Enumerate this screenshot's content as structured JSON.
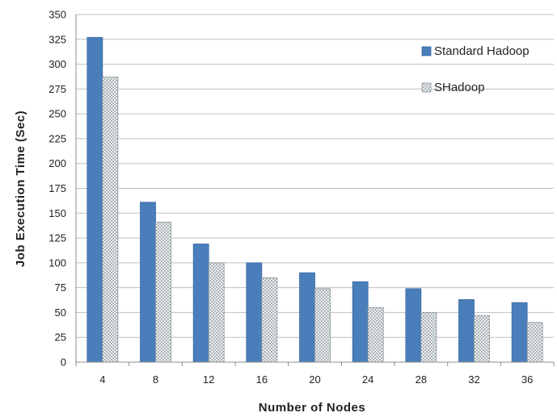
{
  "chart_data": {
    "type": "bar",
    "xlabel": "Number of Nodes",
    "ylabel": "Job Execution Time (Sec)",
    "categories": [
      "4",
      "8",
      "12",
      "16",
      "20",
      "24",
      "28",
      "32",
      "36"
    ],
    "ylim": [
      0,
      350
    ],
    "yticks": [
      0,
      25,
      50,
      75,
      100,
      125,
      150,
      175,
      200,
      225,
      250,
      275,
      300,
      325,
      350
    ],
    "grid": true,
    "legend_position": "top-right",
    "series": [
      {
        "name": "Standard Hadoop",
        "color": "#4a7ebb",
        "pattern": "solid",
        "values": [
          327,
          161,
          119,
          100,
          90,
          81,
          74,
          63,
          60
        ]
      },
      {
        "name": "SHadoop",
        "color": "#c9d2d6",
        "pattern": "crosshatch",
        "values": [
          287,
          141,
          100,
          85,
          74,
          55,
          50,
          47,
          40
        ]
      }
    ]
  }
}
